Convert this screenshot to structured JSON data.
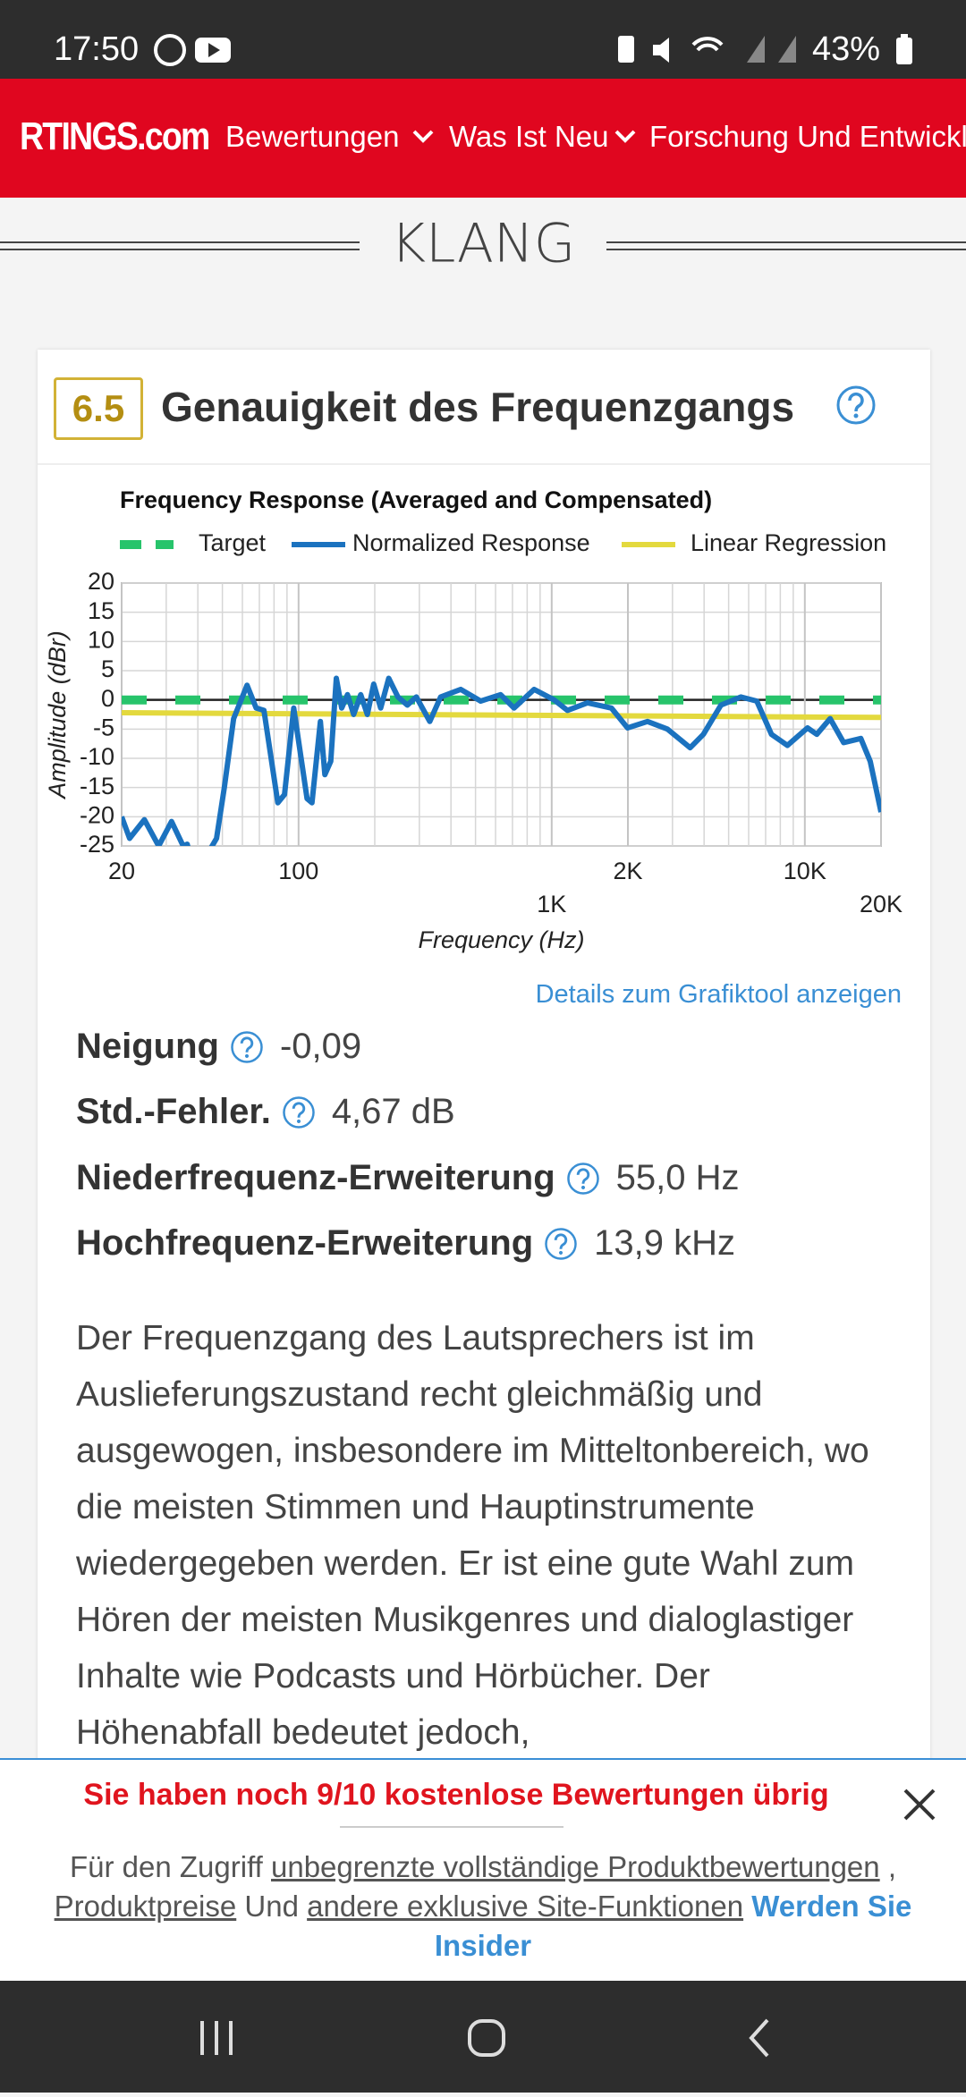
{
  "status_bar": {
    "time": "17:50",
    "battery": "43%"
  },
  "nav": {
    "logo": "RTINGS.com",
    "items": [
      "Bewertungen",
      "Was Ist Neu",
      "Forschung Und Entwicklu"
    ]
  },
  "section_title": "KLANG",
  "card": {
    "score": 6.5,
    "title": "Genauigkeit des Frequenzgangs",
    "chart_data": {
      "type": "line",
      "title": "Frequency Response (Averaged and Compensated)",
      "x_label": "Frequency (Hz)",
      "y_label": "Amplitude (dBr)",
      "x_scale": "log",
      "xlim": [
        20,
        20000
      ],
      "ylim": [
        -25,
        20
      ],
      "xticks": [
        20,
        100,
        {
          "value": 1000,
          "label": "1K"
        },
        {
          "value": 2000,
          "label": "2K"
        },
        {
          "value": 10000,
          "label": "10K"
        },
        {
          "value": 20000,
          "label": "20K"
        }
      ],
      "yticks": [
        20,
        15,
        10,
        5,
        0,
        -5,
        -10,
        -15,
        -20,
        -25
      ],
      "grid": true,
      "series": [
        {
          "name": "Target",
          "color": "#27c46b",
          "style": "dashed",
          "x": [
            20,
            20000
          ],
          "values": [
            0,
            0
          ]
        },
        {
          "name": "Normalized Response",
          "color": "#1b72bf",
          "style": "solid",
          "x": [
            20,
            21.5,
            24.6,
            28,
            31.5,
            35,
            36.3,
            38,
            40,
            43.5,
            47.4,
            50.9,
            55.4,
            62.6,
            68,
            73,
            82.8,
            88,
            95.7,
            108,
            113,
            122,
            127,
            134,
            141,
            148,
            156,
            165,
            176,
            187,
            198,
            211,
            227,
            247,
            269,
            292,
            330,
            364,
            437,
            524,
            628,
            710,
            852,
            1022,
            1154,
            1384,
            1722,
            1993,
            2390,
            2866,
            3524,
            3974,
            4660,
            5587,
            6460,
            7380,
            8530,
            10250,
            11150,
            12590,
            14230,
            16640,
            18120,
            20000
          ],
          "values": [
            -20,
            -23.7,
            -20.5,
            -25,
            -20.8,
            -25,
            -24.7,
            -28,
            -27,
            -26.5,
            -23.7,
            -15,
            -3.2,
            2.5,
            -1.4,
            -1.8,
            -17.6,
            -16.2,
            -1.4,
            -16.9,
            -17.6,
            -3.7,
            -12.8,
            -10.5,
            3.7,
            -1.4,
            0.9,
            -2.5,
            0.9,
            -2.5,
            2.7,
            -1.4,
            3.7,
            0.5,
            -0.9,
            0.5,
            -3.7,
            0.5,
            1.8,
            -0.2,
            0.9,
            -1.4,
            1.8,
            0,
            -1.8,
            -0.5,
            -1.4,
            -4.8,
            -3.7,
            -5,
            -8.2,
            -5.9,
            -0.9,
            0.5,
            -0.2,
            -5.9,
            -7.8,
            -4.8,
            -5.9,
            -3.2,
            -7.3,
            -6.6,
            -10.5,
            -19.2
          ]
        },
        {
          "name": "Linear Regression",
          "color": "#e3d93e",
          "style": "solid",
          "x": [
            20,
            20000
          ],
          "values": [
            -2.2,
            -3
          ]
        }
      ]
    },
    "chart_link": "Details zum Grafiktool anzeigen",
    "metrics": [
      {
        "label": "Neigung",
        "value": "-0,09"
      },
      {
        "label": "Std.-Fehler.",
        "value": "4,67 dB"
      },
      {
        "label": "Niederfrequenz-Erweiterung",
        "value": "55,0 Hz"
      },
      {
        "label": "Hochfrequenz-Erweiterung",
        "value": "13,9 kHz"
      }
    ],
    "paragraph": "Der Frequenzgang des Lautsprechers ist im Auslieferungszustand recht gleichmäßig und ausgewogen, insbesondere im Mitteltonbereich, wo die meisten Stimmen und Hauptinstrumente wiedergegeben werden. Er ist eine gute Wahl zum Hören der meisten Musikgenres und dialoglastiger Inhalte wie Podcasts und Hörbücher. Der Höhenabfall bedeutet jedoch,"
  },
  "banner": {
    "heading": "Sie haben noch 9/10 kostenlose Bewertungen übrig",
    "intro": "Für den Zugriff",
    "link_1": "unbegrenzte vollständige Produktbewertungen",
    "separator": ",",
    "link_2": "Produktpreise",
    "conjunction": "Und",
    "link_3": "andere exklusive Site-Funktionen",
    "cta": "Werden Sie Insider"
  }
}
